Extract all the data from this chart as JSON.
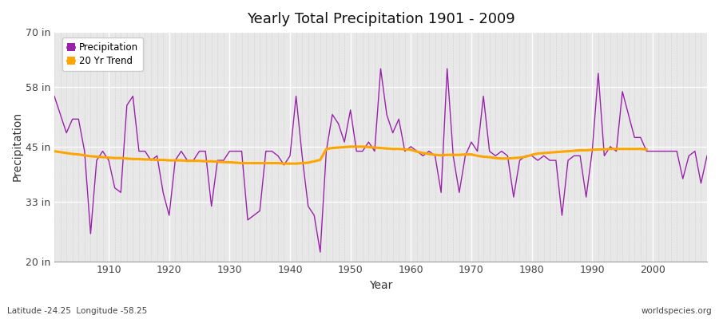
{
  "title": "Yearly Total Precipitation 1901 - 2009",
  "xlabel": "Year",
  "ylabel": "Precipitation",
  "fig_color": "#ffffff",
  "plot_bg_color": "#e8e8e8",
  "precip_color": "#9922aa",
  "trend_color": "#FFA500",
  "ylim": [
    20,
    70
  ],
  "yticks": [
    20,
    33,
    45,
    58,
    70
  ],
  "ytick_labels": [
    "20 in",
    "33 in",
    "45 in",
    "58 in",
    "70 in"
  ],
  "xticks": [
    1910,
    1920,
    1930,
    1940,
    1950,
    1960,
    1970,
    1980,
    1990,
    2000
  ],
  "years": [
    1901,
    1902,
    1903,
    1904,
    1905,
    1906,
    1907,
    1908,
    1909,
    1910,
    1911,
    1912,
    1913,
    1914,
    1915,
    1916,
    1917,
    1918,
    1919,
    1920,
    1921,
    1922,
    1923,
    1924,
    1925,
    1926,
    1927,
    1928,
    1929,
    1930,
    1931,
    1932,
    1933,
    1934,
    1935,
    1936,
    1937,
    1938,
    1939,
    1940,
    1941,
    1942,
    1943,
    1944,
    1945,
    1946,
    1947,
    1948,
    1949,
    1950,
    1951,
    1952,
    1953,
    1954,
    1955,
    1956,
    1957,
    1958,
    1959,
    1960,
    1961,
    1962,
    1963,
    1964,
    1965,
    1966,
    1967,
    1968,
    1969,
    1970,
    1971,
    1972,
    1973,
    1974,
    1975,
    1976,
    1977,
    1978,
    1979,
    1980,
    1981,
    1982,
    1983,
    1984,
    1985,
    1986,
    1987,
    1988,
    1989,
    1990,
    1991,
    1992,
    1993,
    1994,
    1995,
    1996,
    1997,
    1998,
    1999,
    2000,
    2001,
    2002,
    2003,
    2004,
    2005,
    2006,
    2007,
    2008,
    2009
  ],
  "precip": [
    56,
    52,
    48,
    51,
    51,
    44,
    26,
    42,
    44,
    42,
    36,
    35,
    54,
    56,
    44,
    44,
    42,
    43,
    35,
    30,
    42,
    44,
    42,
    42,
    44,
    44,
    32,
    42,
    42,
    44,
    44,
    44,
    29,
    30,
    31,
    44,
    44,
    43,
    41,
    43,
    56,
    43,
    32,
    30,
    22,
    44,
    52,
    50,
    46,
    53,
    44,
    44,
    46,
    44,
    62,
    52,
    48,
    51,
    44,
    45,
    44,
    43,
    44,
    43,
    35,
    62,
    43,
    35,
    43,
    46,
    44,
    56,
    44,
    43,
    44,
    43,
    34,
    42,
    43,
    43,
    42,
    43,
    42,
    42,
    30,
    42,
    43,
    43,
    34,
    44,
    61,
    43,
    45,
    44,
    57,
    52,
    47,
    47,
    44,
    44,
    44,
    44,
    44,
    44,
    38,
    43,
    44,
    37,
    43
  ],
  "trend": [
    44.0,
    43.8,
    43.6,
    43.4,
    43.3,
    43.1,
    42.9,
    42.8,
    42.7,
    42.6,
    42.5,
    42.5,
    42.4,
    42.3,
    42.3,
    42.2,
    42.2,
    42.1,
    42.1,
    42.0,
    42.0,
    42.0,
    41.9,
    41.9,
    41.9,
    41.8,
    41.8,
    41.7,
    41.6,
    41.6,
    41.5,
    41.4,
    41.4,
    41.4,
    41.4,
    41.4,
    41.4,
    41.4,
    41.3,
    41.3,
    41.3,
    41.4,
    41.5,
    41.8,
    42.1,
    44.5,
    44.7,
    44.8,
    44.9,
    45.0,
    45.0,
    45.0,
    44.9,
    44.8,
    44.7,
    44.6,
    44.5,
    44.5,
    44.4,
    44.3,
    43.9,
    43.6,
    43.4,
    43.2,
    43.1,
    43.2,
    43.2,
    43.2,
    43.3,
    43.3,
    43.0,
    42.8,
    42.7,
    42.5,
    42.4,
    42.4,
    42.5,
    42.6,
    42.8,
    43.2,
    43.5,
    43.6,
    43.7,
    43.8,
    43.9,
    44.0,
    44.1,
    44.2,
    44.2,
    44.3,
    44.4,
    44.4,
    44.5,
    44.5,
    44.5,
    44.5,
    44.5,
    44.5,
    44.4
  ],
  "footnote_left": "Latitude -24.25  Longitude -58.25",
  "footnote_right": "worldspecies.org",
  "legend_precip": "Precipitation",
  "legend_trend": "20 Yr Trend"
}
